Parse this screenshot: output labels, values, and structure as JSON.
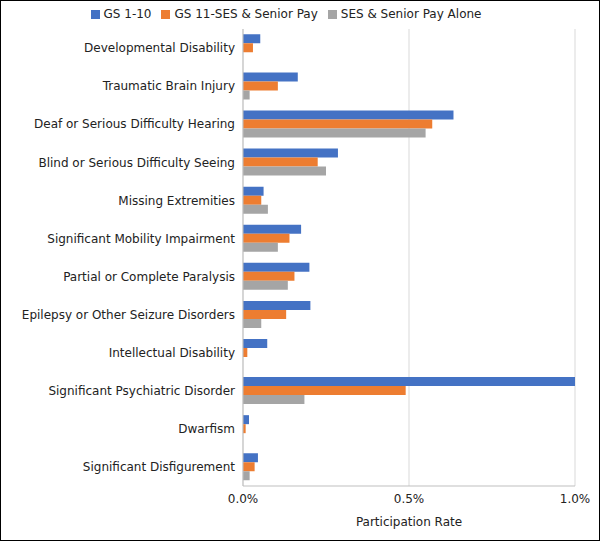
{
  "chart_data": {
    "type": "bar",
    "orientation": "horizontal",
    "grid": true,
    "legend": "top",
    "x_label": "Participation Rate",
    "categories": [
      "Developmental Disability",
      "Traumatic Brain Injury",
      "Deaf or Serious Difficulty Hearing",
      "Blind or Serious Difficulty Seeing",
      "Missing Extremities",
      "Significant Mobility Impairment",
      "Partial or Complete Paralysis",
      "Epilepsy or Other Seizure Disorders",
      "Intellectual Disability",
      "Significant Psychiatric Disorder",
      "Dwarfism",
      "Significant Disfigurement"
    ],
    "series": [
      {
        "name": "GS 1-10",
        "color": "#4472C4",
        "values": [
          0.052,
          0.165,
          0.634,
          0.286,
          0.062,
          0.175,
          0.2,
          0.203,
          0.073,
          1.0,
          0.018,
          0.045
        ]
      },
      {
        "name": "GS 11-SES & Senior Pay",
        "color": "#ED7D31",
        "values": [
          0.03,
          0.105,
          0.57,
          0.225,
          0.055,
          0.14,
          0.155,
          0.13,
          0.013,
          0.49,
          0.008,
          0.035
        ]
      },
      {
        "name": "SES & Senior Pay Alone",
        "color": "#A5A5A5",
        "values": [
          0,
          0.02,
          0.55,
          0.25,
          0.075,
          0.105,
          0.135,
          0.055,
          0,
          0.185,
          0,
          0.02
        ]
      }
    ],
    "xlim": [
      0,
      1
    ],
    "xticks": [
      {
        "value": 0,
        "label": "0.0%"
      },
      {
        "value": 0.5,
        "label": "0.5%"
      },
      {
        "value": 1,
        "label": "1.0%"
      }
    ]
  }
}
